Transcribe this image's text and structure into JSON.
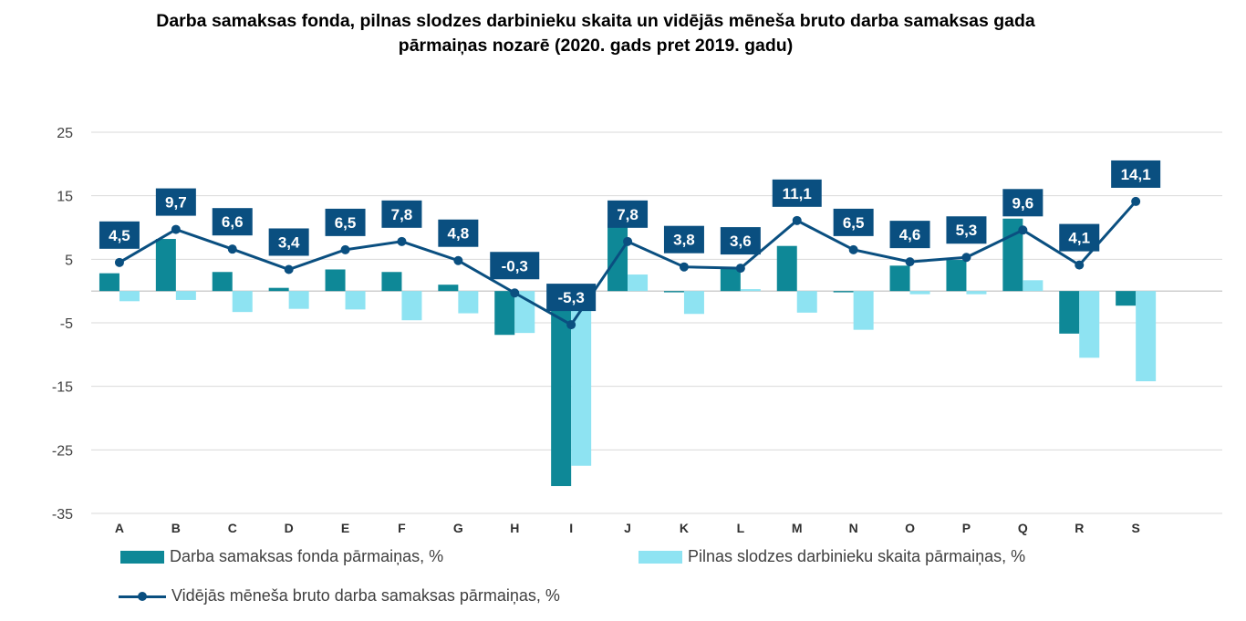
{
  "chart_data": {
    "type": "bar",
    "title_line1": "Darba samaksas fonda, pilnas slodzes darbinieku skaita un vidējās mēneša bruto darba samaksas gada",
    "title_line2": "pārmaiņas nozarē (2020. gads pret 2019. gadu)",
    "categories": [
      "A",
      "B",
      "C",
      "D",
      "E",
      "F",
      "G",
      "H",
      "I",
      "J",
      "K",
      "L",
      "M",
      "N",
      "O",
      "P",
      "Q",
      "R",
      "S"
    ],
    "ylim": [
      -35,
      25
    ],
    "yticks": [
      25,
      15,
      5,
      -5,
      -15,
      -25,
      -35
    ],
    "series": [
      {
        "name": "Darba samaksas fonda pārmaiņas, %",
        "type": "bar",
        "color": "#0e8897",
        "values": [
          2.8,
          8.2,
          3.0,
          0.5,
          3.4,
          3.0,
          1.0,
          -6.9,
          -30.7,
          10.7,
          -0.2,
          3.7,
          7.1,
          -0.2,
          4.0,
          4.9,
          11.4,
          -6.7,
          -2.3
        ]
      },
      {
        "name": "Pilnas slodzes darbinieku skaita pārmaiņas, %",
        "type": "bar",
        "color": "#8ee3f2",
        "values": [
          -1.6,
          -1.4,
          -3.3,
          -2.8,
          -2.9,
          -4.6,
          -3.5,
          -6.6,
          -27.5,
          2.6,
          -3.6,
          0.3,
          -3.4,
          -6.1,
          -0.5,
          -0.5,
          1.7,
          -10.5,
          -14.2
        ]
      },
      {
        "name": "Vidējās mēneša bruto darba samaksas pārmaiņas, %",
        "type": "line",
        "color": "#0a4f80",
        "values": [
          4.5,
          9.7,
          6.6,
          3.4,
          6.5,
          7.8,
          4.8,
          -0.3,
          -5.3,
          7.8,
          3.8,
          3.6,
          11.1,
          6.5,
          4.6,
          5.3,
          9.6,
          4.1,
          14.1
        ],
        "labels": [
          "4,5",
          "9,7",
          "6,6",
          "3,4",
          "6,5",
          "7,8",
          "4,8",
          "-0,3",
          "-5,3",
          "7,8",
          "3,8",
          "3,6",
          "11,1",
          "6,5",
          "4,6",
          "5,3",
          "9,6",
          "4,1",
          "14,1"
        ]
      }
    ],
    "legend": {
      "bar1": "Darba samaksas fonda pārmaiņas, %",
      "bar2": "Pilnas slodzes darbinieku skaita pārmaiņas, %",
      "line": "Vidējās mēneša bruto darba samaksas pārmaiņas, %"
    }
  }
}
